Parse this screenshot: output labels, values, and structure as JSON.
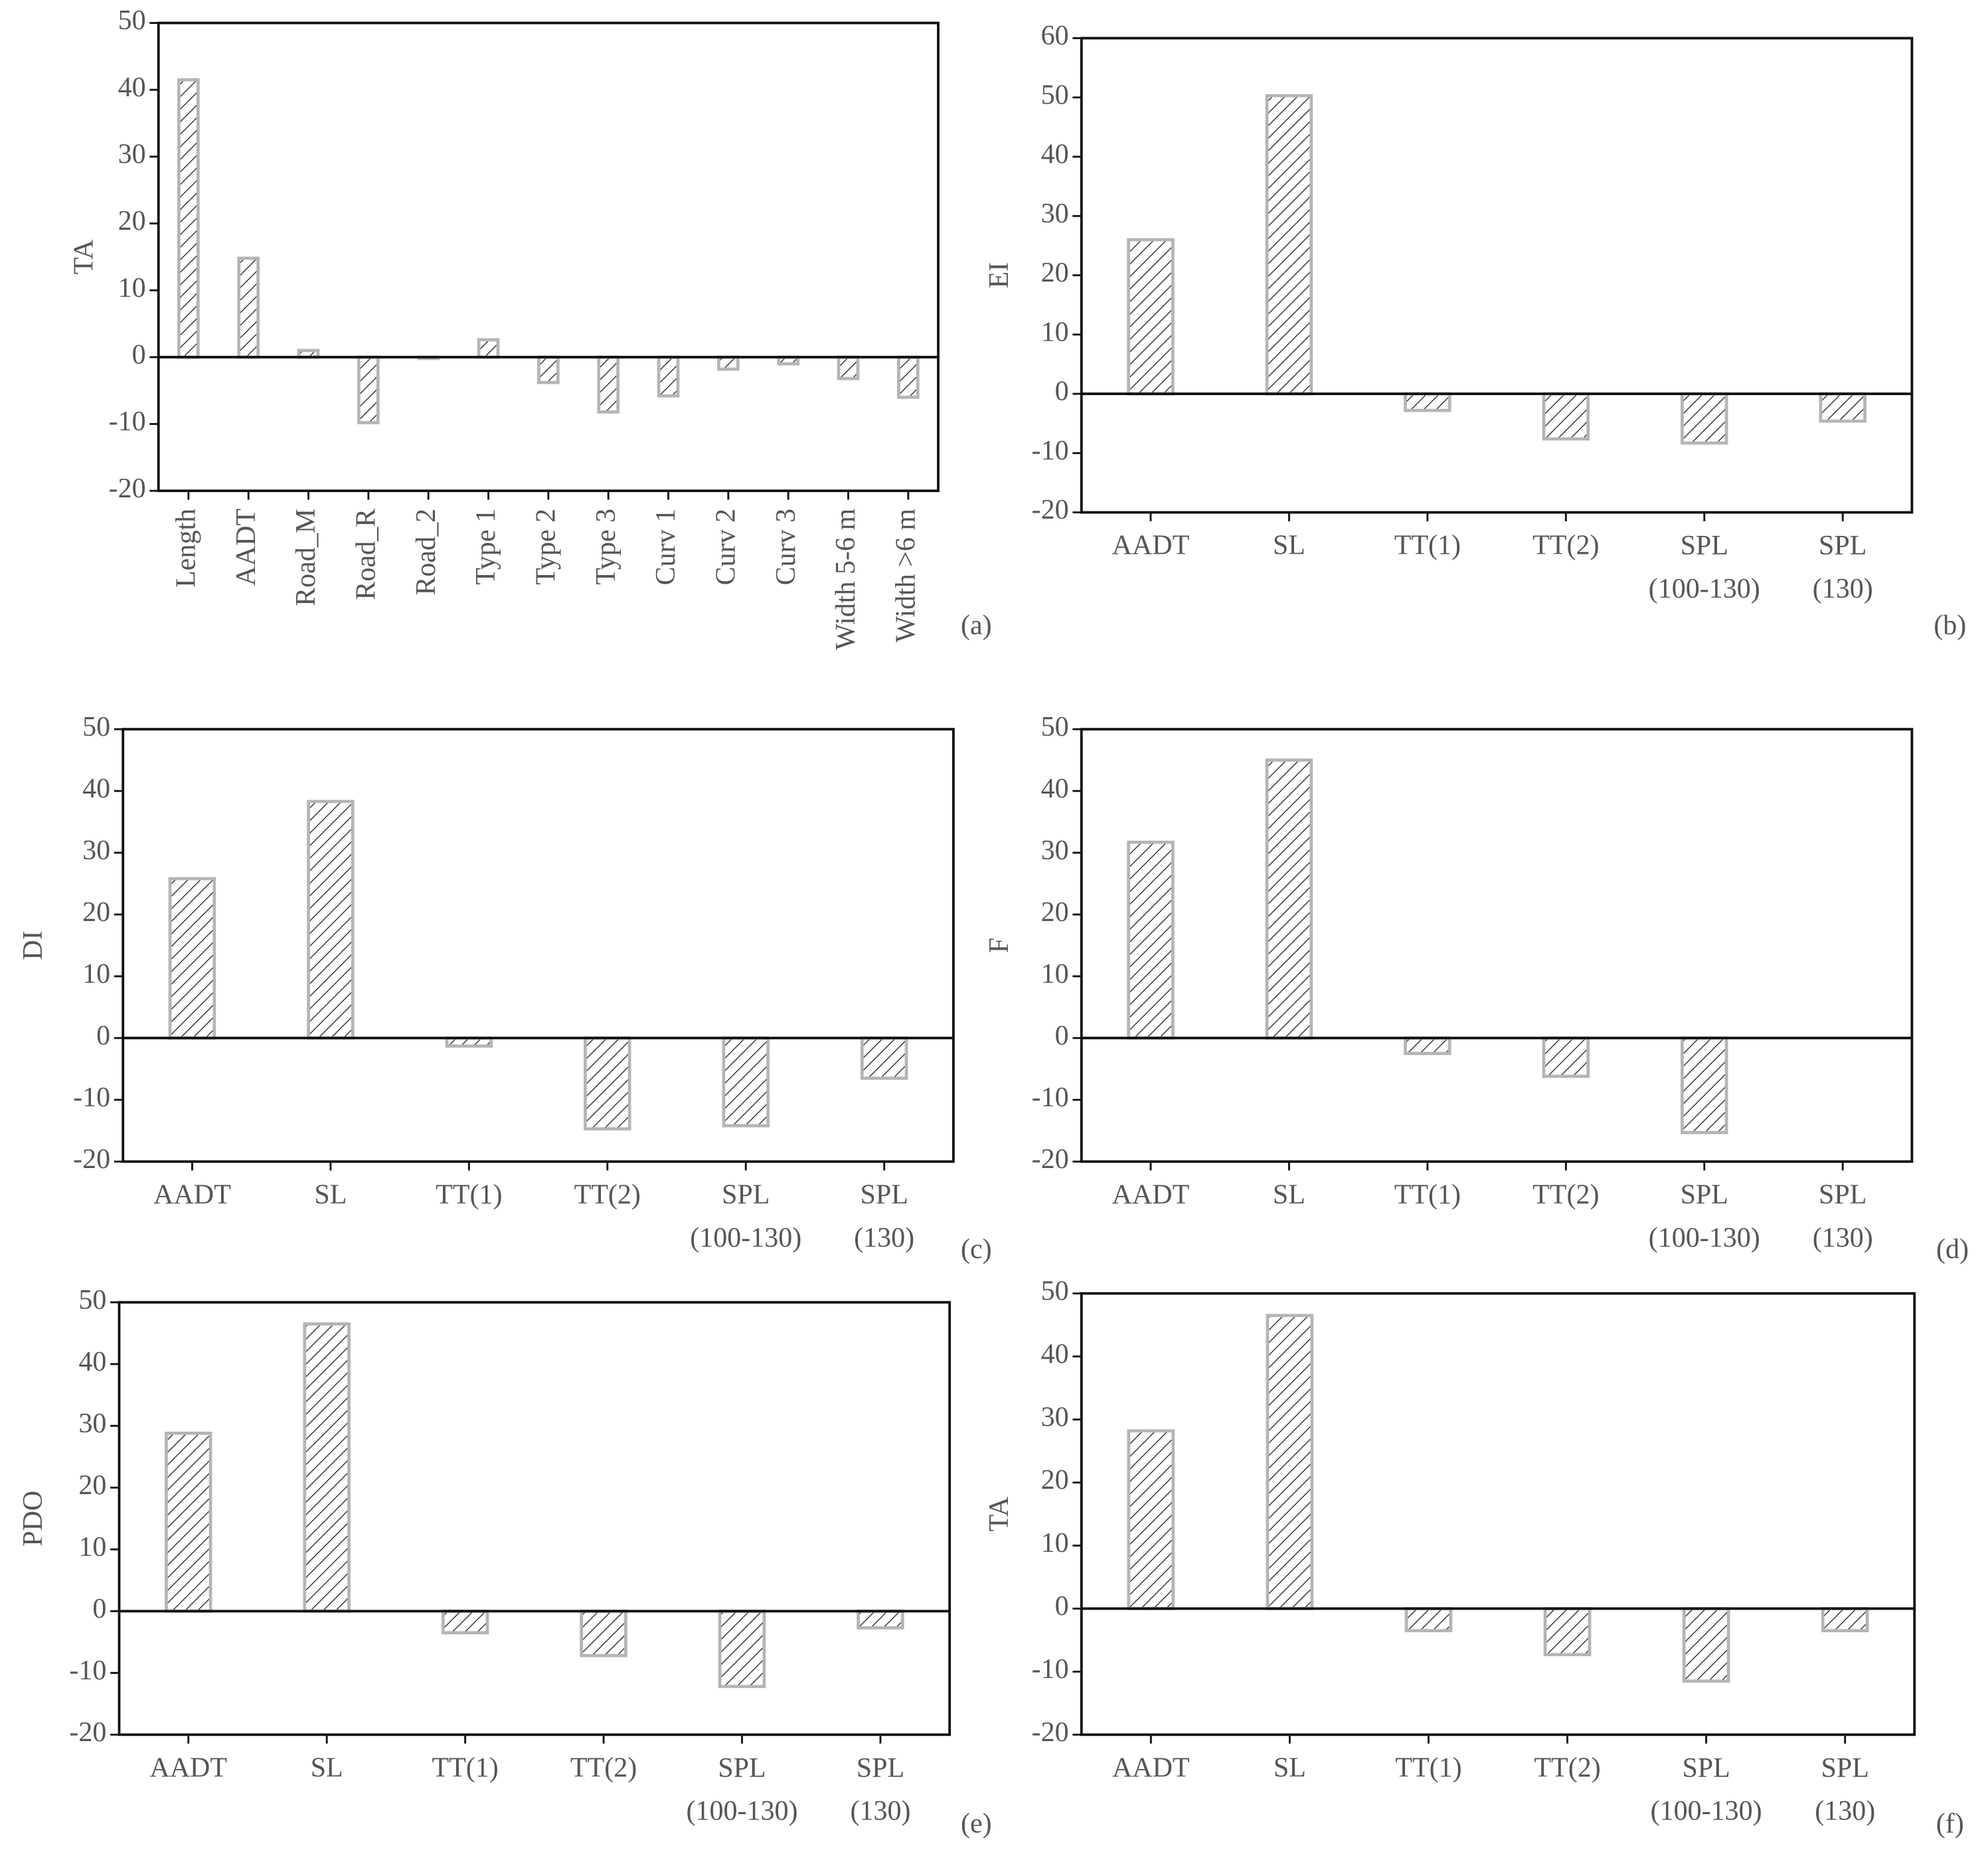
{
  "chart_data": [
    {
      "type": "bar",
      "panel_label": "(a)",
      "ylabel": "TA",
      "categories": [
        "Length",
        "AADT",
        "Road_M",
        "Road_R",
        "Road_2",
        "Type 1",
        "Type 2",
        "Type 3",
        "Curv 1",
        "Curv 2",
        "Curv 3",
        "Width 5-6 m",
        "Width >6 m"
      ],
      "values": [
        41.5,
        14.8,
        1,
        -9.8,
        -0.2,
        2.6,
        -3.8,
        -8.2,
        -5.8,
        -1.8,
        -1,
        -3.2,
        -6
      ],
      "color": "#b5b5b5",
      "ylim": [
        -20,
        50
      ],
      "yticks": [
        -20,
        -10,
        0,
        10,
        20,
        30,
        40,
        50
      ],
      "rotate_labels": true
    },
    {
      "type": "bar",
      "panel_label": "(b)",
      "ylabel": "EI",
      "categories": [
        "AADT",
        "SL",
        "TT(1)",
        "TT(2)",
        "SPL\n(100-130)",
        "SPL\n(130)"
      ],
      "values": [
        26,
        50.3,
        -2.8,
        -7.6,
        -8.3,
        -4.6
      ],
      "color": "#b5b5b5",
      "ylim": [
        -20,
        60
      ],
      "yticks": [
        -20,
        -10,
        0,
        10,
        20,
        30,
        40,
        50,
        60
      ]
    },
    {
      "type": "bar",
      "panel_label": "(c)",
      "ylabel": "DI",
      "categories": [
        "AADT",
        "SL",
        "TT(1)",
        "TT(2)",
        "SPL\n(100-130)",
        "SPL\n(130)"
      ],
      "values": [
        25.8,
        38.3,
        -1.3,
        -14.7,
        -14.2,
        -6.5
      ],
      "color": "#b5b5b5",
      "ylim": [
        -20,
        50
      ],
      "yticks": [
        -20,
        -10,
        0,
        10,
        20,
        30,
        40,
        50
      ]
    },
    {
      "type": "bar",
      "panel_label": "(d)",
      "ylabel": "F",
      "categories": [
        "AADT",
        "SL",
        "TT(1)",
        "TT(2)",
        "SPL\n(100-130)",
        "SPL\n(130)"
      ],
      "values": [
        31.7,
        45,
        -2.5,
        -6.2,
        -15.3,
        null
      ],
      "color": "#b5b5b5",
      "ylim": [
        -20,
        50
      ],
      "yticks": [
        -20,
        -10,
        0,
        10,
        20,
        30,
        40,
        50
      ]
    },
    {
      "type": "bar",
      "panel_label": "(e)",
      "ylabel": "PDO",
      "categories": [
        "AADT",
        "SL",
        "TT(1)",
        "TT(2)",
        "SPL\n(100-130)",
        "SPL\n(130)"
      ],
      "values": [
        28.8,
        46.5,
        -3.5,
        -7.2,
        -12.2,
        -2.7
      ],
      "color": "#b5b5b5",
      "ylim": [
        -20,
        50
      ],
      "yticks": [
        -20,
        -10,
        0,
        10,
        20,
        30,
        40,
        50
      ]
    },
    {
      "type": "bar",
      "panel_label": "(f)",
      "ylabel": "TA",
      "categories": [
        "AADT",
        "SL",
        "TT(1)",
        "TT(2)",
        "SPL\n(100-130)",
        "SPL\n(130)"
      ],
      "values": [
        28.2,
        46.5,
        -3.5,
        -7.3,
        -11.5,
        -3.5
      ],
      "color": "#b5b5b5",
      "ylim": [
        -20,
        50
      ],
      "yticks": [
        -20,
        -10,
        0,
        10,
        20,
        30,
        40,
        50
      ]
    }
  ]
}
